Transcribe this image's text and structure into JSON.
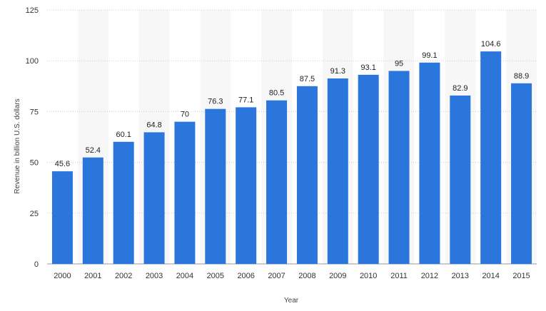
{
  "chart_data": {
    "type": "bar",
    "categories": [
      "2000",
      "2001",
      "2002",
      "2003",
      "2004",
      "2005",
      "2006",
      "2007",
      "2008",
      "2009",
      "2010",
      "2011",
      "2012",
      "2013",
      "2014",
      "2015"
    ],
    "series": [
      {
        "values": [
          45.6,
          52.4,
          60.1,
          64.8,
          70,
          76.3,
          77.1,
          80.5,
          87.5,
          91.3,
          93.1,
          95,
          99.1,
          82.9,
          104.6,
          88.9
        ]
      }
    ],
    "data_labels": [
      "45.6",
      "52.4",
      "60.1",
      "64.8",
      "70",
      "76.3",
      "77.1",
      "80.5",
      "87.5",
      "91.3",
      "93.1",
      "95",
      "99.1",
      "82.9",
      "104.6",
      "88.9"
    ],
    "xlabel": "Year",
    "ylabel": "Revenue in billion U.S. dollars",
    "ylim": [
      0,
      125
    ],
    "yticks": [
      0,
      25,
      50,
      75,
      100,
      125
    ],
    "ytick_labels": [
      "0",
      "25",
      "50",
      "75",
      "100",
      "125"
    ],
    "grid": "horizontal dotted",
    "legend": "none",
    "bar_color": "#2a76dd",
    "alt_band_color": "#f7f7f7"
  }
}
